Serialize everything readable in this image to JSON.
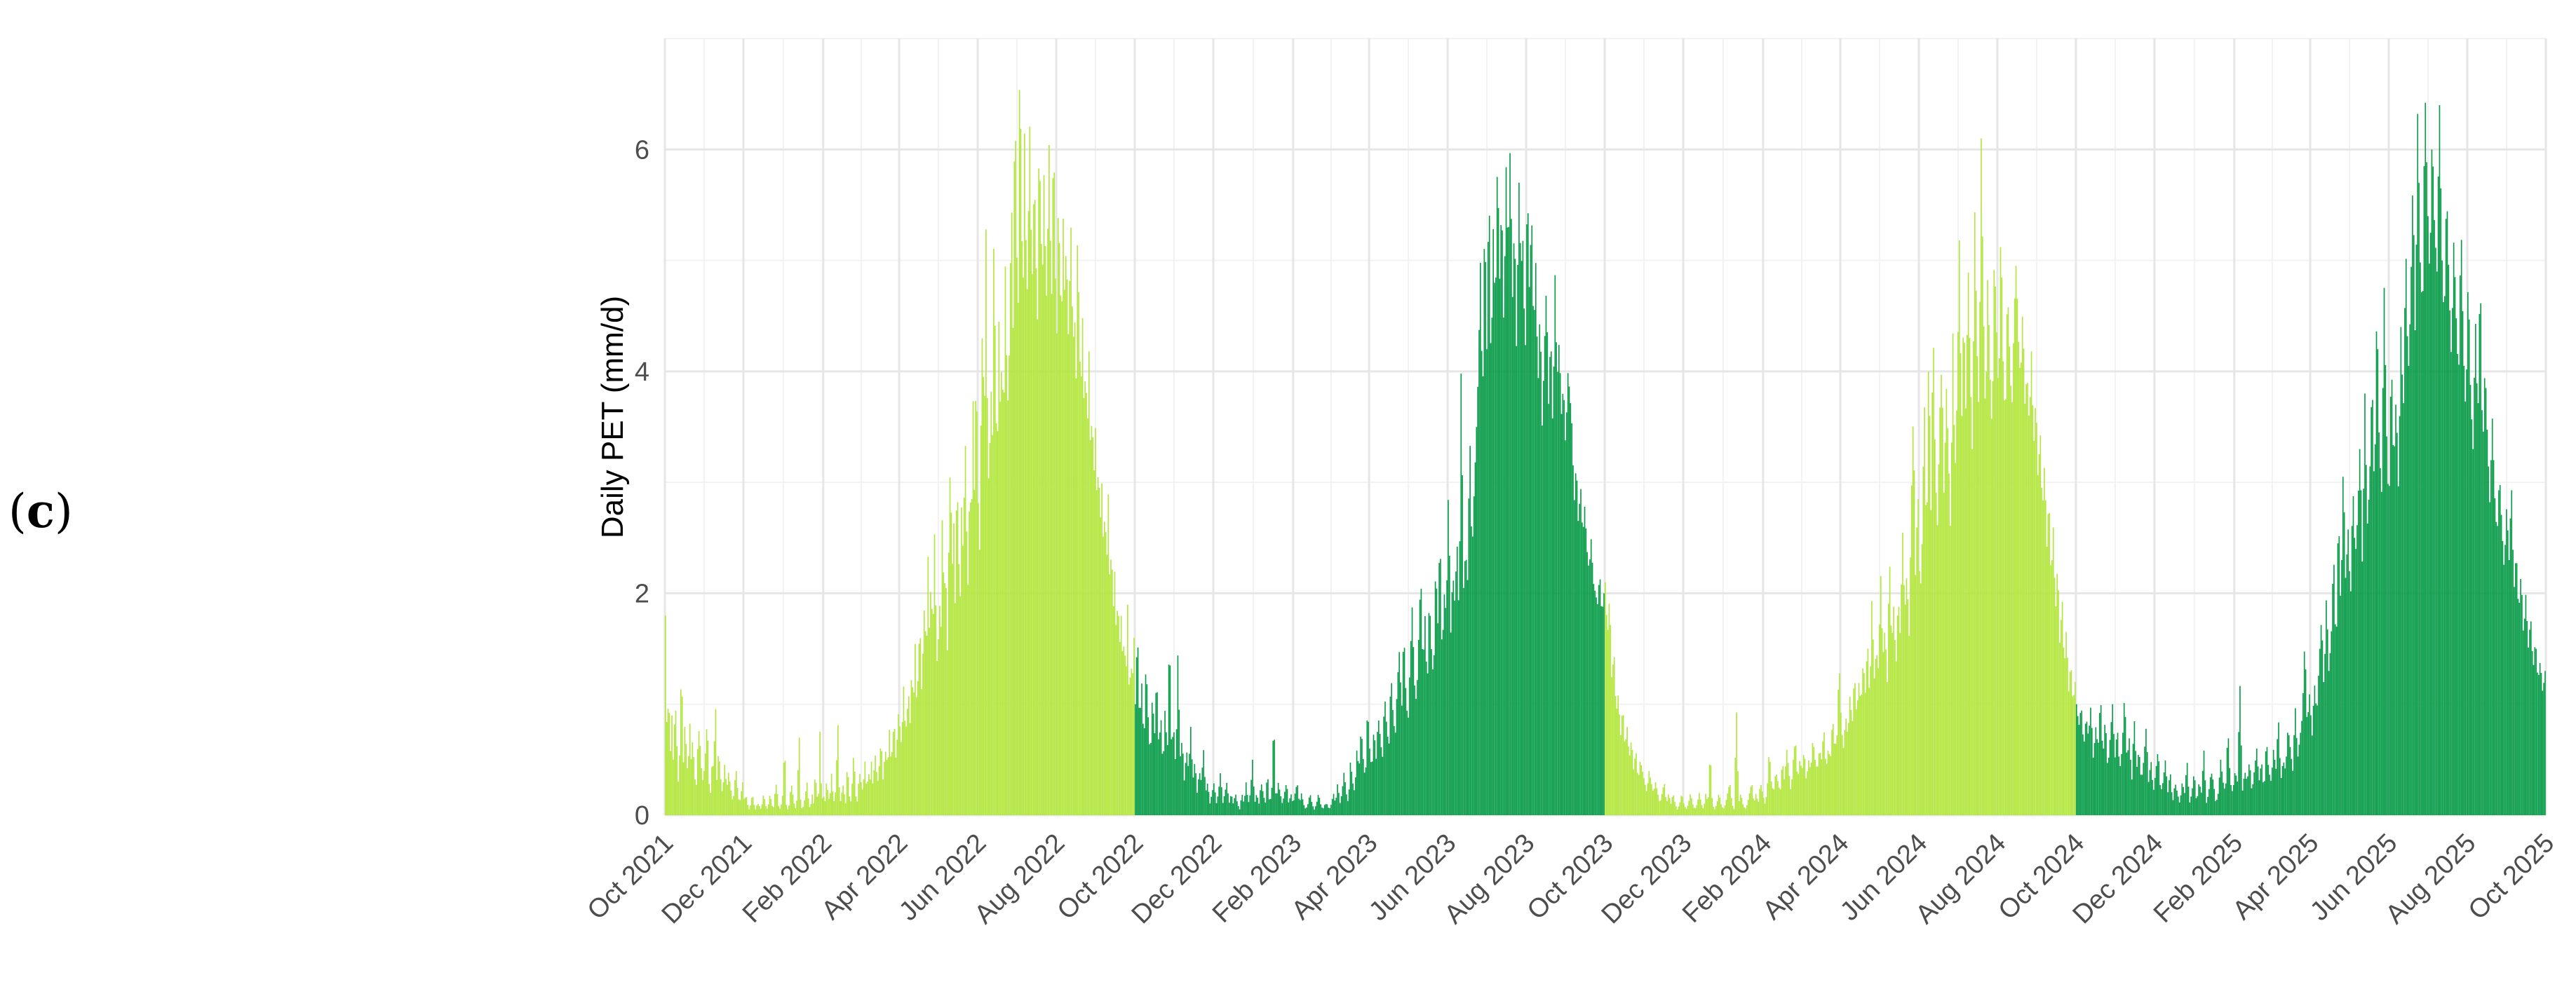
{
  "panel_label": {
    "open": "(",
    "letter": "c",
    "close": ")"
  },
  "chart_data": {
    "type": "bar",
    "title": "",
    "xlabel": "",
    "ylabel": "Daily PET (mm/d)",
    "xlim": [
      "2021-10-01",
      "2025-10-01"
    ],
    "ylim": [
      0,
      7
    ],
    "yticks": [
      0,
      2,
      4,
      6
    ],
    "xticks": [
      {
        "date": "2021-10-01",
        "label": "Oct 2021"
      },
      {
        "date": "2021-12-01",
        "label": "Dec 2021"
      },
      {
        "date": "2022-02-01",
        "label": "Feb 2022"
      },
      {
        "date": "2022-04-01",
        "label": "Apr 2022"
      },
      {
        "date": "2022-06-01",
        "label": "Jun 2022"
      },
      {
        "date": "2022-08-01",
        "label": "Aug 2022"
      },
      {
        "date": "2022-10-01",
        "label": "Oct 2022"
      },
      {
        "date": "2022-12-01",
        "label": "Dec 2022"
      },
      {
        "date": "2023-02-01",
        "label": "Feb 2023"
      },
      {
        "date": "2023-04-01",
        "label": "Apr 2023"
      },
      {
        "date": "2023-06-01",
        "label": "Jun 2023"
      },
      {
        "date": "2023-08-01",
        "label": "Aug 2023"
      },
      {
        "date": "2023-10-01",
        "label": "Oct 2023"
      },
      {
        "date": "2023-12-01",
        "label": "Dec 2023"
      },
      {
        "date": "2024-02-01",
        "label": "Feb 2024"
      },
      {
        "date": "2024-04-01",
        "label": "Apr 2024"
      },
      {
        "date": "2024-06-01",
        "label": "Jun 2024"
      },
      {
        "date": "2024-08-01",
        "label": "Aug 2024"
      },
      {
        "date": "2024-10-01",
        "label": "Oct 2024"
      },
      {
        "date": "2024-12-01",
        "label": "Dec 2024"
      },
      {
        "date": "2025-02-01",
        "label": "Feb 2025"
      },
      {
        "date": "2025-04-01",
        "label": "Apr 2025"
      },
      {
        "date": "2025-06-01",
        "label": "Jun 2025"
      },
      {
        "date": "2025-08-01",
        "label": "Aug 2025"
      },
      {
        "date": "2025-10-01",
        "label": "Oct 2025"
      }
    ],
    "grid": true,
    "legend": "none",
    "series": [
      {
        "start": "2021-10-01",
        "color": "#b2e63c",
        "values": [
          1.8,
          0.6,
          1.2,
          0.5,
          0.9,
          0.4,
          1.1,
          0.7,
          0.3,
          0.6,
          1.5,
          0.4,
          0.8,
          0.6,
          0.3,
          0.9,
          0.5,
          0.7,
          0.4,
          0.2,
          0.6,
          0.8,
          0.5,
          0.3,
          0.4,
          0.6,
          0.9,
          0.3,
          0.2,
          0.5,
          0.4,
          1.1,
          0.3,
          0.6,
          0.4,
          0.2,
          0.3,
          0.5,
          0.2,
          0.4,
          0.3,
          0.2,
          0.1,
          0.3,
          0.4,
          0.2,
          0.1,
          0.2,
          0.3,
          0.1,
          0.2,
          0.1,
          0.05,
          0.1,
          0.2,
          0.1,
          0.05,
          0.1,
          0.1,
          0.05,
          0.1,
          0.2,
          0.1,
          0.05,
          0.1,
          0.2,
          0.1,
          0.05,
          0.2,
          0.3,
          0.1,
          0.05,
          0.1,
          0.2,
          0.7,
          0.1,
          0.05,
          0.1,
          0.3,
          0.2,
          0.1,
          0.05,
          0.2,
          0.8,
          0.1,
          0.05,
          0.1,
          0.2,
          0.3,
          0.1,
          0.05,
          0.2,
          0.1,
          0.4,
          0.2,
          0.1,
          0.8,
          0.1,
          0.2,
          0.1,
          0.3,
          0.2,
          0.1,
          0.4,
          0.2,
          0.1,
          0.3,
          0.9,
          0.2,
          0.1,
          0.3,
          0.2,
          0.1,
          0.5,
          0.2,
          0.1,
          0.3,
          0.6,
          0.2,
          0.1,
          0.3,
          0.4,
          0.2,
          0.3,
          0.5,
          0.2,
          0.4,
          0.3,
          0.5,
          0.2,
          0.6,
          0.4,
          0.3,
          0.5,
          0.7,
          0.3,
          0.5,
          0.6,
          0.4,
          0.8,
          0.5,
          0.6,
          0.9,
          0.5,
          0.7,
          1.0,
          0.6,
          0.8,
          1.2,
          0.7,
          0.9,
          1.1,
          0.8,
          1.4,
          0.9,
          1.6,
          1.0,
          1.3,
          1.8,
          1.1,
          1.5,
          2.0,
          1.3,
          2.4,
          1.6,
          2.2,
          1.5,
          2.6,
          1.8,
          1.2,
          2.0,
          1.6,
          2.8,
          1.9,
          2.3,
          1.4,
          2.5,
          3.3,
          2.1,
          2.7,
          1.8,
          3.2,
          2.4,
          1.9,
          2.9,
          2.2,
          3.6,
          2.6,
          2.0,
          3.1,
          2.5,
          3.8,
          2.8,
          4.2,
          3.0,
          2.3,
          3.7,
          4.6,
          3.2,
          5.4,
          3.5,
          2.8,
          4.0,
          3.3,
          5.4,
          3.9,
          3.1,
          4.5,
          3.6,
          4.2,
          3.4,
          5.0,
          4.0,
          3.6,
          4.8,
          5.5,
          4.2,
          6.8,
          5.2,
          4.5,
          6.9,
          5.8,
          4.4,
          6.2,
          5.0,
          4.6,
          6.5,
          5.3,
          4.8,
          5.9,
          5.1,
          4.4,
          6.1,
          5.5,
          4.7,
          5.8,
          5.0,
          4.5,
          6.3,
          5.2,
          4.6,
          6.4,
          5.0,
          4.3,
          5.6,
          4.9,
          4.4,
          5.4,
          4.6,
          5.3,
          4.2,
          4.8,
          5.4,
          4.1,
          4.6,
          3.9,
          5.4,
          4.3,
          3.8,
          4.5,
          3.6,
          4.1,
          3.4,
          4.2,
          3.2,
          3.7,
          3.0,
          3.5,
          2.8,
          3.2,
          2.6,
          3.0,
          2.4,
          2.8,
          2.2,
          2.9,
          2.0,
          2.5,
          1.8,
          2.2,
          1.6,
          2.0,
          1.5,
          1.8,
          1.4,
          1.6,
          1.2,
          1.9,
          1.0,
          1.4,
          1.2,
          1.6
        ]
      },
      {
        "start": "2022-10-01",
        "color": "#079b48",
        "values": [
          1.0,
          1.7,
          0.8,
          1.2,
          0.6,
          1.4,
          0.9,
          0.5,
          1.1,
          0.7,
          1.3,
          0.6,
          0.9,
          0.4,
          1.0,
          0.5,
          1.7,
          0.6,
          0.8,
          0.4,
          1.5,
          0.5,
          0.7,
          0.3,
          0.6,
          0.4,
          0.8,
          0.3,
          0.5,
          0.2,
          0.4,
          0.3,
          0.6,
          0.2,
          0.3,
          0.1,
          0.2,
          0.3,
          0.1,
          0.2,
          0.4,
          0.1,
          0.2,
          0.3,
          0.1,
          0.2,
          0.1,
          0.2,
          0.1,
          0.05,
          0.2,
          0.1,
          0.3,
          0.1,
          0.2,
          0.5,
          0.1,
          0.2,
          0.1,
          0.3,
          0.2,
          0.1,
          0.4,
          0.1,
          0.2,
          0.9,
          0.1,
          0.3,
          0.2,
          0.1,
          0.2,
          0.3,
          0.1,
          0.2,
          0.1,
          0.2,
          0.3,
          0.1,
          0.2,
          0.1,
          0.05,
          0.1,
          0.2,
          0.1,
          0.05,
          0.1,
          0.2,
          0.1,
          0.05,
          0.1,
          0.1,
          0.05,
          0.1,
          0.2,
          0.1,
          0.3,
          0.1,
          0.2,
          0.4,
          0.2,
          0.1,
          0.5,
          0.3,
          0.2,
          0.6,
          0.4,
          0.8,
          0.5,
          0.3,
          1.0,
          0.6,
          0.4,
          0.8,
          0.5,
          0.9,
          0.7,
          0.5,
          1.1,
          0.8,
          0.6,
          1.3,
          0.9,
          0.7,
          1.2,
          1.5,
          0.9,
          1.7,
          1.1,
          0.8,
          1.4,
          1.9,
          1.2,
          1.0,
          1.6,
          2.2,
          1.3,
          1.8,
          1.1,
          2.0,
          1.5,
          1.2,
          2.3,
          1.7,
          2.6,
          1.4,
          2.0,
          1.8,
          3.0,
          1.6,
          2.2,
          1.9,
          2.5,
          1.7,
          4.2,
          2.0,
          2.4,
          2.1,
          3.5,
          2.3,
          2.9,
          3.4,
          4.0,
          5.0,
          3.6,
          5.5,
          4.2,
          5.8,
          3.9,
          5.3,
          4.5,
          6.0,
          4.8,
          5.6,
          4.3,
          5.9,
          5.0,
          6.1,
          4.6,
          5.4,
          4.1,
          5.8,
          4.9,
          5.2,
          4.0,
          5.8,
          4.7,
          5.5,
          4.3,
          5.0,
          3.8,
          4.6,
          3.5,
          4.2,
          4.8,
          3.7,
          4.4,
          3.4,
          4.9,
          3.9,
          4.3,
          3.6,
          3.9,
          3.3,
          4.0,
          3.8,
          3.5,
          2.8,
          3.2,
          2.6,
          3.0,
          2.5,
          2.8,
          2.4,
          2.2,
          2.5,
          2.1,
          2.0,
          1.9,
          2.2,
          1.8,
          2.0
        ]
      },
      {
        "start": "2023-10-01",
        "color": "#b2e63c",
        "values": [
          2.1,
          1.6,
          2.0,
          1.2,
          1.5,
          0.9,
          1.1,
          0.7,
          1.0,
          0.6,
          0.8,
          0.5,
          0.7,
          0.4,
          0.6,
          0.3,
          0.5,
          0.4,
          0.3,
          0.2,
          0.4,
          0.3,
          0.2,
          0.3,
          0.2,
          0.1,
          0.2,
          0.3,
          0.1,
          0.2,
          0.1,
          0.2,
          0.1,
          0.05,
          0.1,
          0.2,
          0.1,
          0.05,
          0.1,
          0.2,
          0.1,
          0.05,
          0.1,
          0.2,
          0.1,
          0.05,
          0.2,
          0.1,
          0.6,
          0.1,
          0.05,
          0.1,
          0.2,
          0.1,
          0.05,
          0.1,
          0.2,
          0.3,
          0.1,
          0.05,
          1.0,
          0.1,
          0.2,
          0.1,
          0.05,
          0.1,
          0.2,
          0.3,
          0.1,
          0.2,
          0.1,
          0.3,
          0.2,
          0.1,
          0.2,
          0.6,
          0.3,
          0.2,
          0.4,
          0.3,
          0.2,
          0.5,
          0.3,
          0.6,
          0.4,
          0.2,
          0.5,
          0.7,
          0.3,
          0.5,
          0.4,
          0.6,
          0.3,
          0.5,
          0.4,
          0.7,
          0.5,
          0.4,
          0.6,
          0.5,
          0.8,
          0.4,
          0.6,
          0.5,
          0.9,
          0.6,
          0.7,
          1.4,
          0.8,
          0.6,
          0.9,
          0.7,
          1.1,
          0.8,
          1.3,
          0.9,
          1.2,
          1.0,
          1.4,
          1.1,
          1.6,
          1.0,
          2.0,
          1.2,
          1.5,
          1.3,
          2.2,
          1.4,
          1.7,
          1.2,
          2.4,
          1.5,
          1.9,
          1.3,
          2.0,
          1.6,
          2.6,
          1.8,
          2.2,
          1.6,
          2.8,
          3.7,
          2.1,
          3.0,
          1.9,
          2.5,
          3.8,
          2.3,
          4.3,
          2.7,
          4.5,
          3.1,
          2.6,
          3.6,
          4.1,
          2.8,
          3.9,
          3.3,
          2.5,
          4.4,
          3.0,
          3.8,
          5.2,
          3.4,
          4.6,
          3.6,
          5.0,
          4.0,
          3.2,
          5.5,
          4.3,
          3.6,
          6.1,
          4.6,
          3.5,
          4.9,
          4.0,
          3.4,
          5.1,
          4.4,
          3.7,
          5.4,
          4.1,
          3.5,
          4.8,
          4.2,
          3.6,
          4.5,
          5.0,
          4.3,
          3.9,
          4.6,
          3.7,
          4.0,
          3.5,
          4.2,
          3.3,
          3.8,
          3.0,
          3.5,
          2.7,
          3.2,
          2.4,
          2.9,
          2.1,
          2.6,
          1.8,
          2.3,
          1.5,
          2.0,
          1.3,
          1.7,
          1.1,
          1.4,
          1.0,
          1.2
        ]
      },
      {
        "start": "2024-10-01",
        "color": "#079b48",
        "values": [
          1.0,
          0.8,
          1.0,
          0.6,
          0.9,
          0.7,
          1.0,
          0.5,
          0.8,
          0.6,
          1.1,
          0.5,
          0.9,
          0.4,
          0.7,
          1.0,
          0.5,
          0.8,
          0.4,
          0.6,
          1.1,
          0.5,
          0.7,
          0.3,
          0.9,
          0.4,
          0.6,
          0.3,
          0.5,
          0.8,
          0.3,
          0.5,
          0.2,
          0.4,
          0.6,
          0.2,
          0.3,
          0.5,
          0.2,
          0.4,
          0.1,
          0.3,
          0.2,
          0.1,
          0.3,
          0.2,
          0.5,
          0.1,
          0.2,
          0.4,
          0.1,
          0.3,
          0.2,
          0.6,
          0.1,
          0.2,
          0.4,
          0.3,
          0.1,
          0.2,
          0.5,
          0.3,
          0.2,
          0.8,
          0.3,
          0.2,
          0.4,
          0.3,
          1.2,
          0.2,
          0.4,
          0.3,
          0.5,
          0.2,
          0.4,
          0.6,
          0.3,
          0.5,
          0.2,
          0.7,
          0.4,
          0.3,
          0.6,
          0.4,
          0.9,
          0.3,
          0.5,
          0.4,
          0.8,
          0.6,
          0.4,
          1.0,
          0.5,
          0.7,
          0.9,
          1.6,
          0.8,
          1.1,
          0.7,
          1.2,
          0.9,
          1.4,
          1.8,
          1.1,
          2.0,
          1.3,
          1.6,
          2.4,
          1.4,
          2.8,
          1.8,
          3.2,
          2.1,
          2.6,
          1.9,
          3.0,
          2.3,
          2.7,
          3.4,
          2.2,
          3.8,
          2.6,
          3.0,
          4.0,
          2.8,
          4.7,
          3.3,
          2.9,
          4.8,
          3.5,
          2.7,
          4.2,
          3.1,
          3.8,
          2.9,
          4.4,
          3.6,
          5.2,
          3.9,
          4.6,
          5.8,
          4.2,
          6.4,
          5.0,
          4.5,
          6.6,
          5.6,
          4.8,
          6.2,
          5.3,
          4.9,
          6.5,
          5.1,
          4.4,
          5.7,
          4.8,
          4.1,
          5.2,
          4.5,
          3.9,
          5.4,
          4.2,
          3.6,
          4.9,
          3.8,
          3.3,
          4.5,
          3.5,
          5.0,
          3.2,
          4.1,
          3.4,
          2.8,
          3.6,
          2.9,
          2.5,
          3.1,
          2.6,
          2.2,
          2.8,
          2.3,
          3.0,
          2.0,
          2.4,
          1.8,
          2.2,
          1.6,
          2.0,
          1.5,
          1.8,
          1.3,
          1.6,
          1.2,
          1.4,
          1.1,
          1.3
        ]
      }
    ]
  }
}
